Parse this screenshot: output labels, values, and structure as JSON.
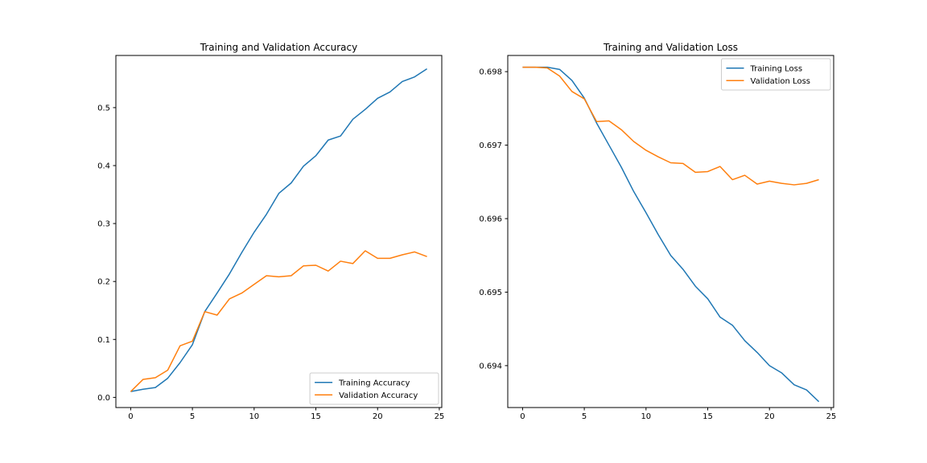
{
  "chart_data": [
    {
      "type": "line",
      "title": "Training and Validation Accuracy",
      "xlabel": "",
      "ylabel": "",
      "xlim": [
        -1.2,
        25.2
      ],
      "ylim": [
        -0.0175,
        0.59
      ],
      "xticks": [
        0,
        5,
        10,
        15,
        20,
        25
      ],
      "xtick_labels": [
        "0",
        "5",
        "10",
        "15",
        "20",
        "25"
      ],
      "yticks": [
        0.0,
        0.1,
        0.2,
        0.3,
        0.4,
        0.5
      ],
      "ytick_labels": [
        "0.0",
        "0.1",
        "0.2",
        "0.3",
        "0.4",
        "0.5"
      ],
      "legend_position": "lower-right",
      "grid": false,
      "x": [
        0,
        1,
        2,
        3,
        4,
        5,
        6,
        7,
        8,
        9,
        10,
        11,
        12,
        13,
        14,
        15,
        16,
        17,
        18,
        19,
        20,
        21,
        22,
        23,
        24
      ],
      "series": [
        {
          "name": "Training Accuracy",
          "color": "#1f77b4",
          "values": [
            0.01,
            0.014,
            0.017,
            0.033,
            0.06,
            0.091,
            0.148,
            0.18,
            0.213,
            0.25,
            0.285,
            0.316,
            0.352,
            0.37,
            0.399,
            0.417,
            0.444,
            0.451,
            0.48,
            0.497,
            0.516,
            0.527,
            0.545,
            0.553,
            0.567
          ]
        },
        {
          "name": "Validation Accuracy",
          "color": "#ff7f0e",
          "values": [
            0.01,
            0.031,
            0.034,
            0.047,
            0.089,
            0.097,
            0.148,
            0.142,
            0.17,
            0.18,
            0.195,
            0.21,
            0.208,
            0.21,
            0.227,
            0.228,
            0.218,
            0.235,
            0.231,
            0.253,
            0.24,
            0.24,
            0.246,
            0.251,
            0.243
          ]
        }
      ]
    },
    {
      "type": "line",
      "title": "Training and Validation Loss",
      "xlabel": "",
      "ylabel": "",
      "xlim": [
        -1.2,
        25.2
      ],
      "ylim": [
        0.69343,
        0.69822
      ],
      "xticks": [
        0,
        5,
        10,
        15,
        20,
        25
      ],
      "xtick_labels": [
        "0",
        "5",
        "10",
        "15",
        "20",
        "25"
      ],
      "yticks": [
        0.694,
        0.695,
        0.696,
        0.697,
        0.698
      ],
      "ytick_labels": [
        "0.694",
        "0.695",
        "0.696",
        "0.697",
        "0.698"
      ],
      "legend_position": "upper-right",
      "grid": false,
      "x": [
        0,
        1,
        2,
        3,
        4,
        5,
        6,
        7,
        8,
        9,
        10,
        11,
        12,
        13,
        14,
        15,
        16,
        17,
        18,
        19,
        20,
        21,
        22,
        23,
        24
      ],
      "series": [
        {
          "name": "Training Loss",
          "color": "#1f77b4",
          "values": [
            0.69806,
            0.69806,
            0.69806,
            0.69803,
            0.69788,
            0.69764,
            0.6973,
            0.697,
            0.6967,
            0.69637,
            0.69608,
            0.69578,
            0.6955,
            0.69531,
            0.69508,
            0.69491,
            0.69466,
            0.69455,
            0.69434,
            0.69418,
            0.694,
            0.6939,
            0.69374,
            0.69367,
            0.69351
          ]
        },
        {
          "name": "Validation Loss",
          "color": "#ff7f0e",
          "values": [
            0.69806,
            0.69806,
            0.69805,
            0.69794,
            0.69773,
            0.69763,
            0.69732,
            0.69733,
            0.69721,
            0.69705,
            0.69693,
            0.69684,
            0.69676,
            0.69675,
            0.69663,
            0.69664,
            0.69671,
            0.69653,
            0.69659,
            0.69647,
            0.69651,
            0.69648,
            0.69646,
            0.69648,
            0.69653
          ]
        }
      ]
    }
  ]
}
